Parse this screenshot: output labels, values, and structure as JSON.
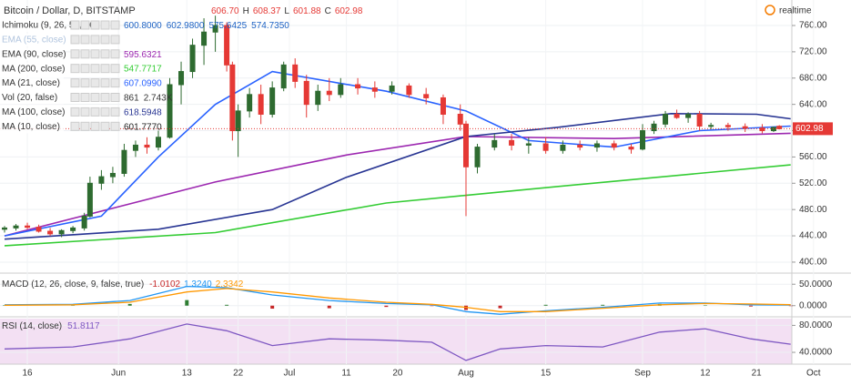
{
  "chart_data": [
    {
      "type": "candlestick",
      "title": "Bitcoin / Dollar, D, BITSTAMP",
      "ohlc_text": [
        "606.70",
        "H",
        "608.37",
        "L",
        "601.88",
        "C",
        "602.98"
      ],
      "realtime": "realtime",
      "up_color": "#2e6b30",
      "down_color": "#e53935",
      "x": [
        133,
        135,
        137,
        139,
        141,
        143,
        145,
        147,
        148,
        150,
        152,
        154,
        156,
        158,
        160,
        162,
        164,
        166,
        168,
        170,
        172,
        173,
        174,
        176,
        178,
        180,
        182,
        184,
        186,
        188,
        190,
        192,
        195,
        198,
        201,
        204,
        207,
        210,
        213,
        214,
        216,
        219,
        222,
        225,
        228,
        231,
        234,
        237,
        240,
        243,
        245,
        247,
        249,
        251,
        253,
        255,
        257,
        260,
        263,
        266,
        268,
        269
      ],
      "open": [
        450,
        452,
        455,
        453,
        447,
        443,
        448,
        452,
        470,
        520,
        530,
        535,
        570,
        578,
        575,
        590,
        670,
        690,
        730,
        750,
        760,
        700,
        600,
        630,
        655,
        625,
        665,
        700,
        675,
        640,
        660,
        655,
        670,
        665,
        660,
        668,
        655,
        650,
        625,
        610,
        545,
        575,
        585,
        578,
        580,
        570,
        578,
        575,
        580,
        575,
        572,
        600,
        610,
        625,
        620,
        625,
        607,
        608,
        606,
        604,
        600,
        606.7
      ],
      "high": [
        455,
        458,
        460,
        457,
        452,
        450,
        455,
        475,
        530,
        540,
        545,
        580,
        585,
        590,
        600,
        680,
        705,
        740,
        771,
        775,
        765,
        705,
        640,
        665,
        670,
        675,
        705,
        710,
        685,
        670,
        680,
        680,
        680,
        675,
        675,
        672,
        665,
        655,
        640,
        615,
        580,
        595,
        595,
        590,
        590,
        585,
        585,
        585,
        585,
        580,
        610,
        615,
        630,
        632,
        628,
        630,
        612,
        612,
        611,
        610,
        606,
        608.37
      ],
      "low": [
        445,
        448,
        450,
        445,
        440,
        438,
        444,
        448,
        468,
        510,
        520,
        530,
        560,
        565,
        570,
        588,
        640,
        680,
        700,
        720,
        690,
        585,
        560,
        620,
        610,
        620,
        660,
        665,
        620,
        630,
        645,
        650,
        655,
        650,
        655,
        650,
        640,
        610,
        600,
        470,
        535,
        570,
        570,
        565,
        565,
        565,
        570,
        568,
        570,
        565,
        570,
        595,
        605,
        618,
        612,
        600,
        602,
        600,
        598,
        596,
        598,
        601.88
      ],
      "close": [
        452,
        455,
        453,
        447,
        443,
        448,
        452,
        470,
        520,
        530,
        535,
        570,
        578,
        575,
        590,
        670,
        690,
        730,
        750,
        760,
        700,
        600,
        630,
        655,
        625,
        665,
        700,
        675,
        640,
        660,
        655,
        670,
        665,
        660,
        668,
        655,
        650,
        625,
        610,
        545,
        575,
        585,
        578,
        580,
        570,
        578,
        575,
        580,
        575,
        572,
        600,
        610,
        625,
        620,
        625,
        607,
        608,
        606,
        604,
        600,
        605,
        602.98
      ],
      "last_price": 602.98,
      "last_price_color": "#e53935",
      "xlim": [
        132.2,
        271.2
      ],
      "xticks": [
        {
          "value": 137,
          "label": "16"
        },
        {
          "value": 153,
          "label": "Jun"
        },
        {
          "value": 165,
          "label": "13"
        },
        {
          "value": 174,
          "label": "22"
        },
        {
          "value": 183,
          "label": "Jul"
        },
        {
          "value": 193,
          "label": "11"
        },
        {
          "value": 202,
          "label": "20"
        },
        {
          "value": 214,
          "label": "Aug"
        },
        {
          "value": 228,
          "label": "15"
        },
        {
          "value": 245,
          "label": "Sep"
        },
        {
          "value": 256,
          "label": "12"
        },
        {
          "value": 265,
          "label": "21"
        },
        {
          "value": 275,
          "label": "Oct"
        }
      ],
      "ylim": [
        383.3,
        798.8
      ],
      "yticks": [
        {
          "value": 400,
          "label": "400.00"
        },
        {
          "value": 440,
          "label": "440.00"
        },
        {
          "value": 480,
          "label": "480.00"
        },
        {
          "value": 520,
          "label": "520.00"
        },
        {
          "value": 560,
          "label": "560.00"
        },
        {
          "value": 600,
          "label": "600.00"
        },
        {
          "value": 640,
          "label": "640.00"
        },
        {
          "value": 680,
          "label": "680.00"
        },
        {
          "value": 720,
          "label": "720.00"
        },
        {
          "value": 760,
          "label": "760.00"
        }
      ],
      "indicators": [
        {
          "name": "Ichimoku (9, 26, 52, 26)",
          "color": "#1e63c4",
          "values_text": [
            "600.8000",
            "602.9800",
            "575.6425",
            "574.7350"
          ]
        },
        {
          "name": "EMA (55, close)",
          "color": "#b0c4de",
          "values_text": []
        },
        {
          "name": "EMA (90, close)",
          "color": "#9c27b0",
          "values_text": [
            "595.6321"
          ],
          "x": [
            133,
            170,
            193,
            214,
            240,
            271
          ],
          "values": [
            440,
            522,
            563,
            591,
            588,
            596
          ]
        },
        {
          "name": "MA (200, close)",
          "color": "#33cc33",
          "values_text": [
            "547.7717"
          ],
          "x": [
            133,
            170,
            200,
            230,
            271
          ],
          "values": [
            425,
            445,
            490,
            515,
            548
          ]
        },
        {
          "name": "MA (21, close)",
          "color": "#2962ff",
          "values_text": [
            "607.0990"
          ],
          "x": [
            133,
            150,
            160,
            170,
            180,
            200,
            214,
            225,
            240,
            255,
            271
          ],
          "values": [
            440,
            470,
            560,
            640,
            690,
            660,
            630,
            585,
            575,
            600,
            607
          ]
        },
        {
          "name": "Vol (20, false)",
          "color": "#333333",
          "values_text": [
            "861",
            "2.743K"
          ]
        },
        {
          "name": "MA (100, close)",
          "color": "#283593",
          "values_text": [
            "618.5948"
          ],
          "x": [
            133,
            160,
            180,
            193,
            214,
            230,
            250,
            265,
            271
          ],
          "values": [
            435,
            450,
            480,
            529,
            591,
            605,
            626,
            625,
            618
          ]
        },
        {
          "name": "MA (10, close)",
          "color": "#222222",
          "values_text": [
            "601.7770"
          ]
        }
      ]
    },
    {
      "type": "macd",
      "name": "MACD (12, 26, close, 9, false, true)",
      "values_text": [
        "-1.0102",
        "1.3240",
        "2.3342"
      ],
      "x": [
        133,
        145,
        155,
        165,
        172,
        180,
        190,
        200,
        208,
        214,
        220,
        228,
        238,
        248,
        256,
        264,
        271
      ],
      "series": [
        {
          "color": "#2196f3",
          "values": [
            2,
            3,
            12,
            45,
            42,
            25,
            12,
            5,
            2,
            -14,
            -20,
            -12,
            -4,
            6,
            6,
            2,
            1.3
          ]
        },
        {
          "color": "#ff9800",
          "values": [
            1,
            2,
            8,
            32,
            40,
            32,
            18,
            8,
            3,
            -4,
            -14,
            -14,
            -6,
            2,
            5,
            4,
            2.3
          ]
        }
      ],
      "histogram": [
        1,
        1,
        4,
        13,
        2,
        -7,
        -6,
        -3,
        -1,
        -10,
        -6,
        2,
        2,
        4,
        1,
        -2,
        -1
      ],
      "ylim": [
        -23.9,
        71.7
      ],
      "yticks": [
        {
          "value": 50,
          "label": "50.0000"
        },
        {
          "value": 0,
          "label": "0.0000"
        }
      ]
    },
    {
      "type": "rsi",
      "name": "RSI (14, close)",
      "values_text": [
        "51.8117"
      ],
      "x": [
        133,
        145,
        155,
        165,
        172,
        180,
        190,
        200,
        208,
        214,
        220,
        228,
        238,
        248,
        256,
        264,
        271
      ],
      "color": "#7e57c2",
      "values": [
        45,
        48,
        60,
        82,
        72,
        50,
        60,
        58,
        55,
        28,
        45,
        50,
        48,
        70,
        75,
        60,
        52
      ],
      "ylim": [
        22.5,
        90
      ],
      "yticks": [
        {
          "value": 80,
          "label": "80.0000"
        },
        {
          "value": 40,
          "label": "40.0000"
        }
      ]
    }
  ]
}
